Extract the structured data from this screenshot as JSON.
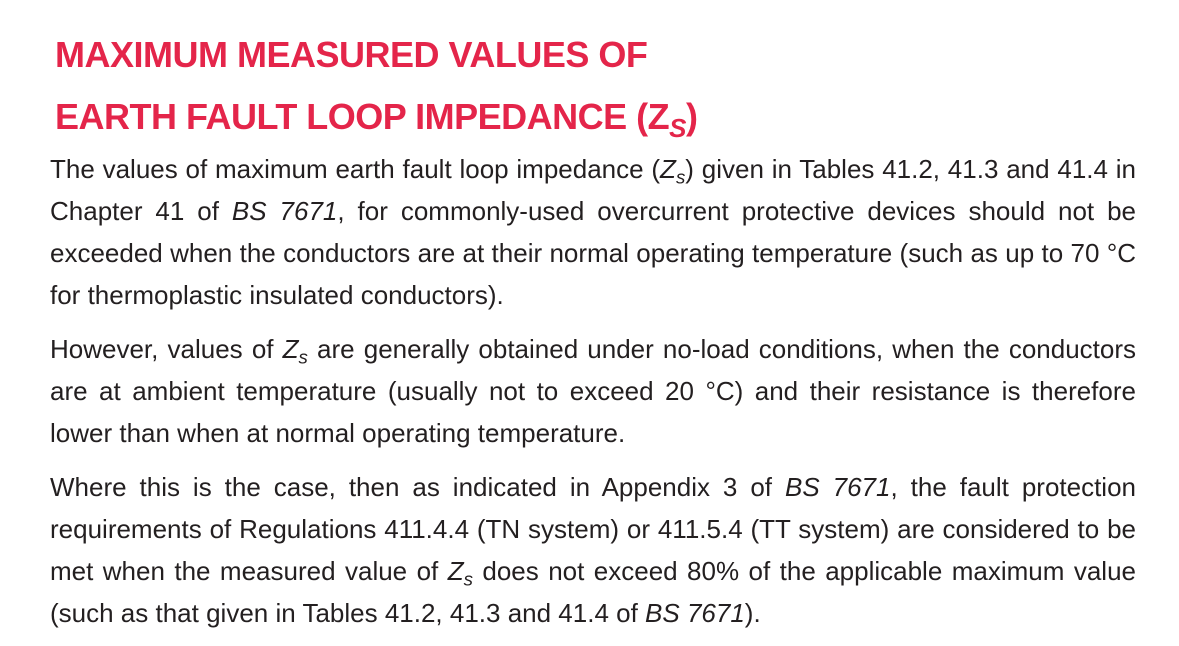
{
  "heading": {
    "lines": [
      "MAXIMUM MEASURED VALUES OF",
      "EARTH FAULT LOOP IMPEDANCE (Z"
    ],
    "subscript": "S",
    "close": ")"
  },
  "paragraphs": [
    [
      "The values of maximum earth fault loop impedance (",
      "Z",
      "s",
      ") given in Tables 41.2, 41.3 and 41.4 in Chapter 41 of ",
      "BS 7671",
      ", for commonly-used overcurrent protective devices should not be exceeded when the conductors are at their normal operating temperature (such as up to 70 °C for thermoplastic insulated conductors)."
    ],
    [
      "However, values of ",
      "Z",
      "s",
      " are generally obtained under no-load conditions, when the conductors are at ambient temperature (usually not to exceed 20 °C) and their resistance is therefore lower than when at normal operating temperature."
    ],
    [
      "Where this is the case, then as indicated in Appendix 3 of ",
      "BS 7671",
      ", the fault protection requirements of Regulations 411.4.4 (TN system) or 411.5.4 (TT system) are considered to be met when the measured value of ",
      "Z",
      "s",
      " does not exceed 80% of the applicable maximum value (such as that given in Tables 41.2, 41.3 and 41.4 of ",
      "BS 7671",
      ")."
    ]
  ]
}
